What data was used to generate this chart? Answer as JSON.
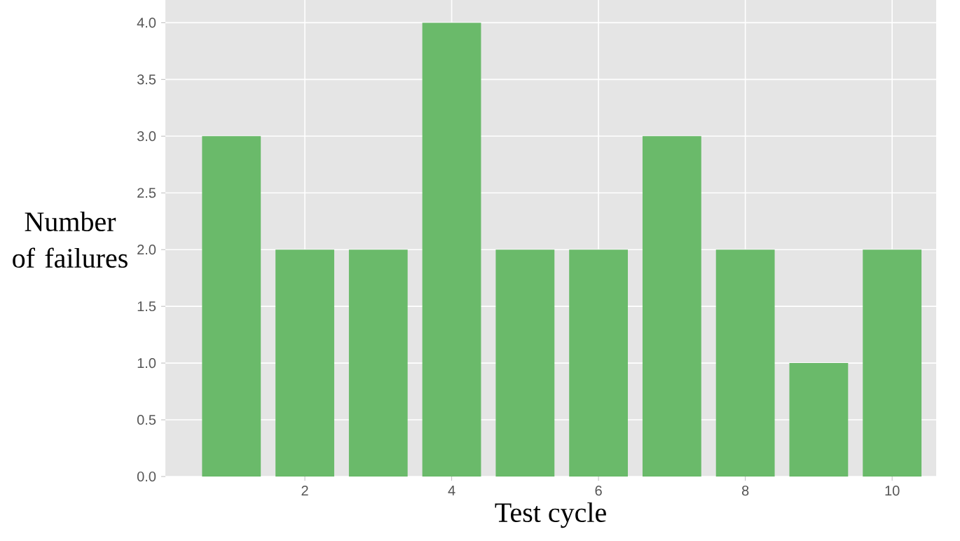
{
  "chart_data": {
    "type": "bar",
    "xlabel": "Test cycle",
    "ylabel": "Number of failures",
    "x": [
      1,
      2,
      3,
      4,
      5,
      6,
      7,
      8,
      9,
      10
    ],
    "values": [
      3,
      2,
      2,
      4,
      2,
      2,
      3,
      2,
      1,
      2
    ],
    "color": "#6aba6a",
    "xlim": [
      0.1,
      10.6
    ],
    "ylim": [
      0,
      4.2
    ],
    "xticks": [
      2,
      4,
      6,
      8,
      10
    ],
    "yticks": [
      {
        "value": 0,
        "label": "0.0"
      },
      {
        "value": 0.5,
        "label": "0.5"
      },
      {
        "value": 1,
        "label": "1.0"
      },
      {
        "value": 1.5,
        "label": "1.5"
      },
      {
        "value": 2,
        "label": "2.0"
      },
      {
        "value": 2.5,
        "label": "2.5"
      },
      {
        "value": 3,
        "label": "3.0"
      },
      {
        "value": 3.5,
        "label": "3.5"
      },
      {
        "value": 4,
        "label": "4.0"
      }
    ],
    "grid": true
  }
}
